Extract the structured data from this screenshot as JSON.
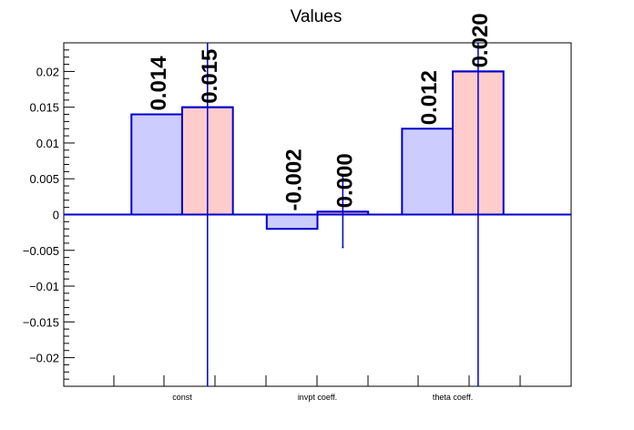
{
  "chart_data": {
    "type": "bar",
    "title": "Values",
    "xlabel": "",
    "ylabel": "",
    "categories": [
      "const",
      "invpt coeff.",
      "theta coeff."
    ],
    "ylim": [
      -0.024,
      0.024
    ],
    "yticks": [
      -0.02,
      -0.015,
      -0.01,
      -0.005,
      0,
      0.005,
      0.01,
      0.015,
      0.02
    ],
    "ytick_labels": [
      "−0.02",
      "−0.015",
      "−0.01",
      "−0.005",
      "0",
      "0.005",
      "0.01",
      "0.015",
      "0.02"
    ],
    "series": [
      {
        "values": [
          0.014,
          -0.002,
          0.012
        ],
        "labels": [
          "0.014",
          "-0.002",
          "0.012"
        ],
        "fill": "#ccccff",
        "stroke": "#0000cc"
      },
      {
        "values": [
          0.015,
          0.0004,
          0.02
        ],
        "labels": [
          "0.015",
          "0.000",
          "0.020"
        ],
        "fill": "#ffcccc",
        "stroke": "#0000cc",
        "errors": [
          0.12,
          0.005,
          0.12
        ]
      }
    ],
    "legend": "none",
    "grid": false
  }
}
